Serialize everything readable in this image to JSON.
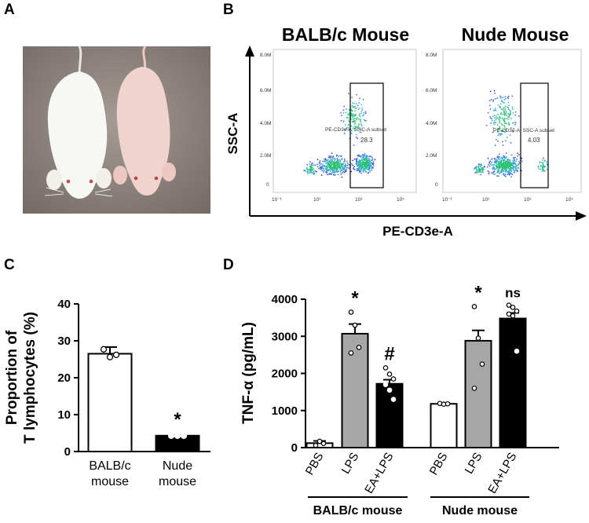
{
  "panels": {
    "A": "A",
    "B": "B",
    "C": "C",
    "D": "D"
  },
  "colors": {
    "mouse_bg": "#8f8580",
    "white_mouse": "#f7f7f3",
    "nude_mouse": "#f1d3cd",
    "bar_gray": "#a6a6a6",
    "bar_black": "#000000",
    "bar_white": "#ffffff"
  },
  "panelB": {
    "titles": [
      "BALB/c Mouse",
      "Nude Mouse"
    ],
    "xlabel": "PE-CD3e-A",
    "ylabel": "SSC-A",
    "yticks": [
      "8.0M",
      "6.0M",
      "4.0M",
      "2.0M",
      "0"
    ],
    "xticks": [
      "10⁻¹",
      "10¹",
      "10³",
      "10⁵"
    ],
    "gates": [
      {
        "label": "PE-CD3e-A, SSC-A subset",
        "value": "28.3"
      },
      {
        "label": "PE-CD3e-A, SSC-A subset",
        "value": "4.03"
      }
    ]
  },
  "chart_data": [
    {
      "type": "bar",
      "panel": "C",
      "categories": [
        "BALB/c mouse",
        "Nude mouse"
      ],
      "category_lines": [
        [
          "BALB/c",
          "mouse"
        ],
        [
          "Nude",
          "mouse"
        ]
      ],
      "values": [
        26.5,
        4.3
      ],
      "errors": [
        1.8,
        0.2
      ],
      "points": [
        [
          27.7,
          25.6,
          26.2
        ],
        [
          4.3,
          4.3,
          4.3
        ]
      ],
      "fills": [
        "#ffffff",
        "#000000"
      ],
      "significance": [
        "",
        "*"
      ],
      "ylabel_lines": [
        "Proportion of",
        "T lymphocytes (%)"
      ],
      "ylim": [
        0,
        40
      ],
      "yticks": [
        0,
        10,
        20,
        30,
        40
      ]
    },
    {
      "type": "bar",
      "panel": "D",
      "categories": [
        "PBS",
        "LPS",
        "EA+LPS",
        "PBS",
        "LPS",
        "EA+LPS"
      ],
      "groups": [
        "BALB/c mouse",
        "Nude mouse"
      ],
      "values": [
        120,
        3070,
        1720,
        1180,
        2880,
        3480
      ],
      "errors": [
        60,
        260,
        110,
        20,
        280,
        150
      ],
      "points": [
        [
          60,
          170,
          110
        ],
        [
          3650,
          3300,
          2700,
          2550
        ],
        [
          2150,
          1980,
          1850,
          1700,
          1550,
          1300
        ],
        [
          1190,
          1170,
          1180
        ],
        [
          3800,
          2950,
          2250,
          1600
        ],
        [
          3840,
          3780,
          3680,
          3600,
          3550,
          2600
        ]
      ],
      "fills": [
        "#ffffff",
        "#a6a6a6",
        "#000000",
        "#ffffff",
        "#a6a6a6",
        "#000000"
      ],
      "significance": [
        "",
        "*",
        "#",
        "",
        "*",
        "ns"
      ],
      "ylabel": "TNF-α (pg/mL)",
      "ylim": [
        0,
        4000
      ],
      "yticks": [
        0,
        1000,
        2000,
        3000,
        4000
      ]
    }
  ]
}
